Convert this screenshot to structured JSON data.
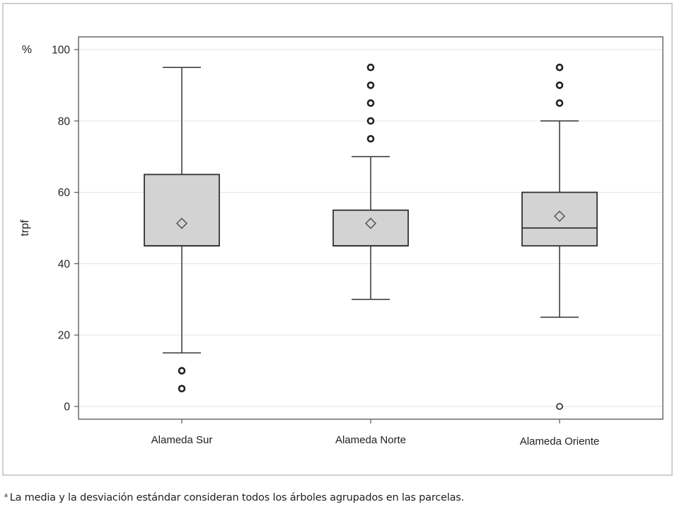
{
  "chart_data": {
    "type": "box",
    "ylabel": "trpf",
    "yunit": "%",
    "ylim": [
      0,
      100
    ],
    "yticks": [
      0,
      20,
      40,
      60,
      80,
      100
    ],
    "grid": true,
    "categories": [
      "Alameda Sur",
      "Alameda Norte",
      "Alameda Oriente"
    ],
    "boxes": [
      {
        "category": "Alameda Sur",
        "whisker_low": 15,
        "q1": 45,
        "median": 45,
        "q3": 65,
        "whisker_high": 95,
        "mean": 51.3,
        "outliers": [
          10,
          5
        ]
      },
      {
        "category": "Alameda Norte",
        "whisker_low": 30,
        "q1": 45,
        "median": 45,
        "q3": 55,
        "whisker_high": 70,
        "mean": 51.3,
        "outliers": [
          75,
          80,
          85,
          90,
          95
        ]
      },
      {
        "category": "Alameda Oriente",
        "whisker_low": 25,
        "q1": 45,
        "median": 50,
        "q3": 60,
        "whisker_high": 80,
        "mean": 53.3,
        "outliers": [
          85,
          90,
          95,
          0
        ]
      }
    ],
    "colors": {
      "box_fill": "#d3d3d3",
      "line": "#333333",
      "grid": "#e8e8e8"
    }
  },
  "footnote": {
    "marker": "a",
    "text": "La media y la desviación estándar consideran todos los árboles agrupados en las parcelas."
  }
}
